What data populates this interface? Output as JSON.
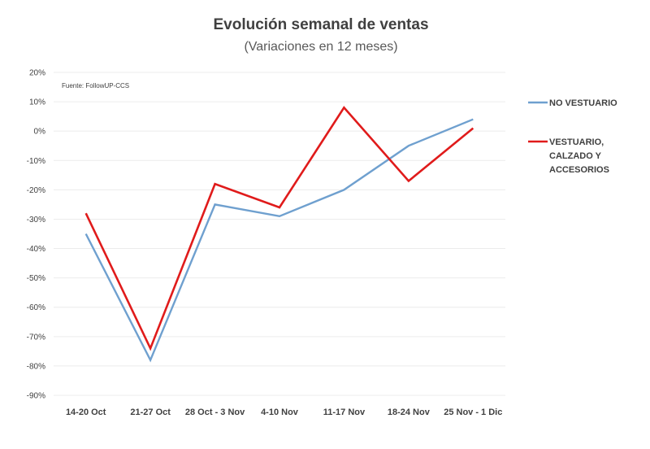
{
  "chart_data": {
    "type": "line",
    "title": "Evolución semanal de ventas",
    "subtitle": "(Variaciones en 12 meses)",
    "source": "Fuente: FollowUP-CCS",
    "categories": [
      "14-20 Oct",
      "21-27 Oct",
      "28 Oct - 3 Nov",
      "4-10 Nov",
      "11-17 Nov",
      "18-24 Nov",
      "25 Nov - 1 Dic"
    ],
    "y_ticks": [
      "20%",
      "10%",
      "0%",
      "-10%",
      "-20%",
      "-30%",
      "-40%",
      "-50%",
      "-60%",
      "-70%",
      "-80%",
      "-90%"
    ],
    "ylim": [
      -90,
      20
    ],
    "y_unit": "%",
    "grid": true,
    "legend_position": "right",
    "series": [
      {
        "name": "NO VESTUARIO",
        "color": "#6fa0cf",
        "values": [
          -35,
          -78,
          -25,
          -29,
          -20,
          -5,
          4
        ]
      },
      {
        "name": "VESTUARIO, CALZADO Y ACCESORIOS",
        "legend_lines": [
          "VESTUARIO,",
          "CALZADO Y",
          "ACCESORIOS"
        ],
        "color": "#e01b1b",
        "values": [
          -28,
          -74,
          -18,
          -26,
          8,
          -17,
          1
        ]
      }
    ]
  }
}
